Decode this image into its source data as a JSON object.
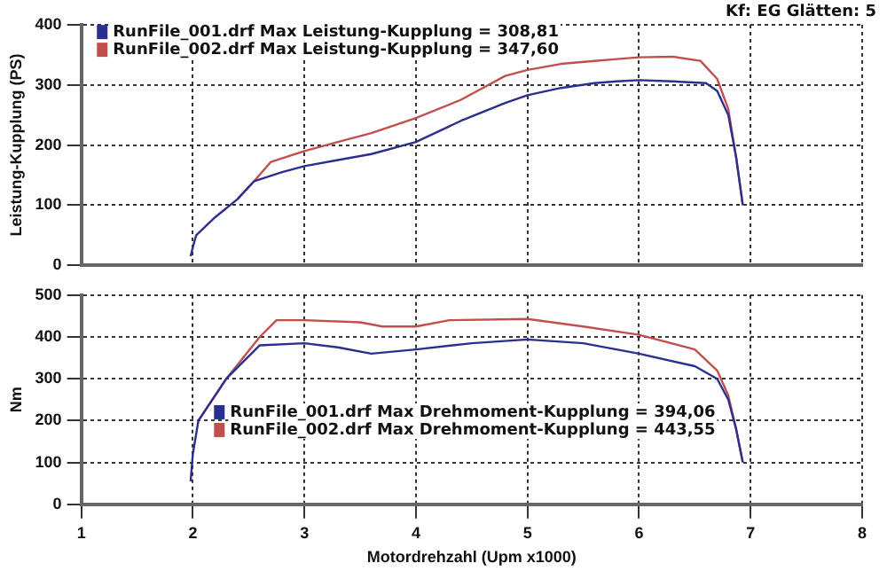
{
  "chart_data": [
    {
      "type": "line",
      "ylabel": "Leistung-Kupplung (PS)",
      "annotations": [
        "Kf: EG  Glätten: 5"
      ],
      "xlim": [
        1,
        8
      ],
      "xticks": [
        1,
        2,
        3,
        4,
        5,
        6,
        7,
        8
      ],
      "ylim": [
        0,
        400
      ],
      "yticks": [
        0,
        100,
        200,
        300,
        400
      ],
      "tick_labels": "y",
      "grid": true,
      "legend": "top left",
      "series": [
        {
          "name": "RunFile_001.drf Max Leistung-Kupplung = 308,81",
          "color": "#2b2f8f",
          "x": [
            1.98,
            2.0,
            2.03,
            2.2,
            2.4,
            2.55,
            2.8,
            3.0,
            3.3,
            3.6,
            4.0,
            4.4,
            4.8,
            5.0,
            5.3,
            5.6,
            5.8,
            6.0,
            6.3,
            6.6,
            6.7,
            6.8,
            6.87,
            6.93
          ],
          "values": [
            15,
            30,
            50,
            80,
            110,
            140,
            155,
            165,
            175,
            185,
            205,
            240,
            270,
            283,
            295,
            303,
            306,
            308,
            306,
            303,
            290,
            250,
            180,
            100
          ]
        },
        {
          "name": "RunFile_002.drf Max Leistung-Kupplung = 347,60",
          "color": "#c0504d",
          "x": [
            2.4,
            2.55,
            2.7,
            3.0,
            3.3,
            3.6,
            4.0,
            4.4,
            4.8,
            5.0,
            5.3,
            5.6,
            5.8,
            6.0,
            6.3,
            6.55,
            6.7,
            6.8,
            6.87,
            6.93
          ],
          "values": [
            110,
            140,
            172,
            190,
            205,
            220,
            245,
            275,
            315,
            325,
            335,
            340,
            343,
            346,
            347,
            340,
            310,
            260,
            180,
            100
          ]
        }
      ]
    },
    {
      "type": "line",
      "xlabel": "Motordrehzahl (Upm x1000)",
      "ylabel": "Nm",
      "xlim": [
        1,
        8
      ],
      "xticks": [
        1,
        2,
        3,
        4,
        5,
        6,
        7,
        8
      ],
      "ylim": [
        0,
        500
      ],
      "yticks": [
        0,
        100,
        200,
        300,
        400,
        500
      ],
      "grid": true,
      "legend": "left",
      "series": [
        {
          "name": "RunFile_001.drf Max Drehmoment-Kupplung = 394,06",
          "color": "#2b2f8f",
          "x": [
            1.98,
            2.0,
            2.05,
            2.3,
            2.6,
            3.0,
            3.3,
            3.6,
            4.0,
            4.5,
            5.0,
            5.5,
            6.0,
            6.5,
            6.7,
            6.8,
            6.87,
            6.93
          ],
          "values": [
            55,
            120,
            200,
            300,
            380,
            385,
            375,
            360,
            370,
            385,
            394,
            385,
            360,
            330,
            300,
            250,
            180,
            100
          ]
        },
        {
          "name": "RunFile_002.drf Max Drehmoment-Kupplung = 443,55",
          "color": "#c0504d",
          "x": [
            2.05,
            2.3,
            2.6,
            2.75,
            3.0,
            3.5,
            3.7,
            4.0,
            4.3,
            5.0,
            5.5,
            6.0,
            6.5,
            6.7,
            6.8,
            6.87,
            6.93
          ],
          "values": [
            200,
            300,
            400,
            440,
            440,
            435,
            425,
            425,
            440,
            443,
            425,
            405,
            370,
            320,
            260,
            180,
            100
          ]
        }
      ]
    }
  ]
}
